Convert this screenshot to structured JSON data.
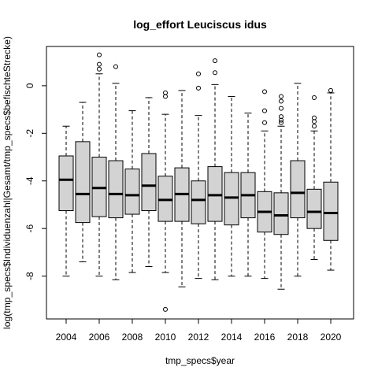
{
  "chart_data": {
    "type": "boxplot",
    "title": "log_effort Leuciscus idus",
    "xlabel": "tmp_specs$year",
    "ylabel": "log(tmp_specs$Individuenzahl|Gesamt/tmp_specs$befischteStrecke)",
    "ylim": [
      -9.8,
      1.65
    ],
    "y_ticks": [
      0,
      -2,
      -4,
      -6,
      -8
    ],
    "x_tick_labels": [
      "2004",
      "2006",
      "2008",
      "2010",
      "2012",
      "2014",
      "2016",
      "2018",
      "2020"
    ],
    "grid": false,
    "boxes": [
      {
        "year": "2004",
        "min": -8.0,
        "q1": -5.25,
        "median": -3.95,
        "q3": -2.95,
        "max": -1.7,
        "outliers": []
      },
      {
        "year": "2005",
        "min": -7.4,
        "q1": -5.75,
        "median": -4.55,
        "q3": -2.35,
        "max": -0.7,
        "outliers": []
      },
      {
        "year": "2006",
        "min": -8.0,
        "q1": -5.5,
        "median": -4.3,
        "q3": -3.0,
        "max": 0.5,
        "outliers": [
          0.7,
          0.9,
          1.3
        ]
      },
      {
        "year": "2007",
        "min": -8.15,
        "q1": -5.55,
        "median": -4.55,
        "q3": -3.15,
        "max": 0.1,
        "outliers": [
          0.8
        ]
      },
      {
        "year": "2008",
        "min": -7.85,
        "q1": -5.4,
        "median": -4.6,
        "q3": -3.5,
        "max": -1.05,
        "outliers": []
      },
      {
        "year": "2009",
        "min": -7.6,
        "q1": -5.25,
        "median": -4.2,
        "q3": -2.85,
        "max": -0.5,
        "outliers": []
      },
      {
        "year": "2010",
        "min": -7.85,
        "q1": -5.7,
        "median": -4.8,
        "q3": -3.8,
        "max": -1.2,
        "outliers": [
          -0.3,
          -0.45,
          -9.4
        ]
      },
      {
        "year": "2011",
        "min": -8.45,
        "q1": -5.7,
        "median": -4.55,
        "q3": -3.45,
        "max": -0.2,
        "outliers": []
      },
      {
        "year": "2012",
        "min": -8.1,
        "q1": -5.8,
        "median": -4.8,
        "q3": -4.0,
        "max": -1.25,
        "outliers": [
          0.5,
          -0.1
        ]
      },
      {
        "year": "2013",
        "min": -8.15,
        "q1": -5.7,
        "median": -4.6,
        "q3": -3.4,
        "max": 0.05,
        "outliers": [
          1.05,
          0.55
        ]
      },
      {
        "year": "2014",
        "min": -8.0,
        "q1": -5.85,
        "median": -4.7,
        "q3": -3.65,
        "max": -0.45,
        "outliers": []
      },
      {
        "year": "2015",
        "min": -8.0,
        "q1": -5.55,
        "median": -4.6,
        "q3": -3.65,
        "max": -1.15,
        "outliers": []
      },
      {
        "year": "2016",
        "min": -8.1,
        "q1": -6.15,
        "median": -5.3,
        "q3": -4.45,
        "max": -1.9,
        "outliers": [
          -0.25,
          -1.05,
          -1.55
        ]
      },
      {
        "year": "2017",
        "min": -8.55,
        "q1": -6.25,
        "median": -5.45,
        "q3": -4.5,
        "max": -1.7,
        "outliers": [
          -0.45,
          -0.65,
          -0.95,
          -1.3,
          -1.45,
          -1.55
        ]
      },
      {
        "year": "2018",
        "min": -8.0,
        "q1": -5.55,
        "median": -4.5,
        "q3": -3.15,
        "max": 0.1,
        "outliers": []
      },
      {
        "year": "2019",
        "min": -7.3,
        "q1": -6.0,
        "median": -5.3,
        "q3": -4.35,
        "max": -1.9,
        "outliers": [
          -0.5,
          -1.35,
          -1.5,
          -1.7
        ]
      },
      {
        "year": "2020",
        "min": -7.75,
        "q1": -6.5,
        "median": -5.35,
        "q3": -4.05,
        "max": -0.3,
        "outliers": [
          -0.2
        ]
      }
    ]
  }
}
